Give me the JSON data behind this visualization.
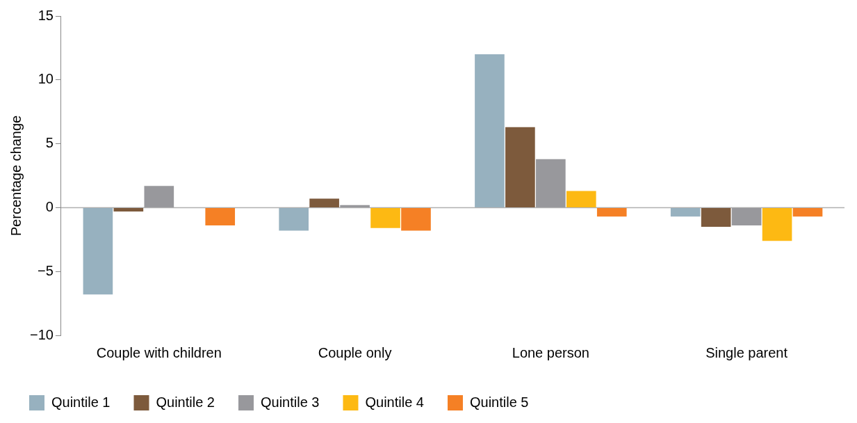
{
  "chart_data": {
    "type": "bar",
    "ylabel": "Percentage change",
    "categories": [
      "Couple with children",
      "Couple only",
      "Lone person",
      "Single parent"
    ],
    "series": [
      {
        "name": "Quintile 1",
        "color": "#97b1bf",
        "values": [
          -6.8,
          -1.8,
          12.0,
          -0.7
        ]
      },
      {
        "name": "Quintile 2",
        "color": "#7d5a3c",
        "values": [
          -0.3,
          0.7,
          6.3,
          -1.5
        ]
      },
      {
        "name": "Quintile 3",
        "color": "#98989c",
        "values": [
          1.7,
          0.2,
          3.8,
          -1.4
        ]
      },
      {
        "name": "Quintile 4",
        "color": "#fdb913",
        "values": [
          0,
          -1.6,
          1.3,
          -2.6
        ]
      },
      {
        "name": "Quintile 5",
        "color": "#f58025",
        "values": [
          -1.4,
          -1.8,
          -0.7,
          -0.7
        ]
      }
    ],
    "ylim": [
      -10,
      15
    ],
    "yticks": [
      -10,
      -5,
      0,
      5,
      10,
      15
    ],
    "ref_lines": [
      {
        "axis": "y",
        "value": 0,
        "color": "#b0b0b0"
      }
    ],
    "grid": false,
    "legend": "bottom left"
  }
}
